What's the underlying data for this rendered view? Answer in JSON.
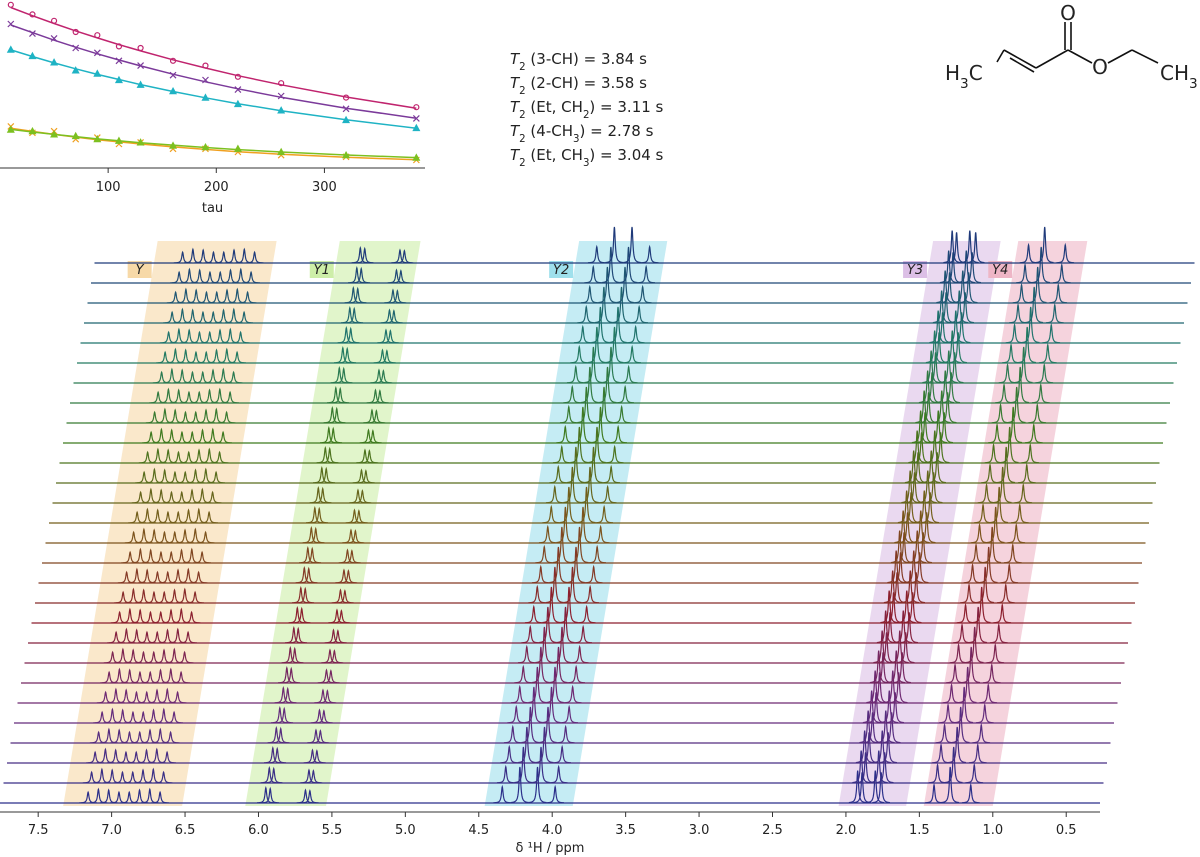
{
  "annotations": [
    [
      "T",
      "2",
      " (3-CH) = 3.84 s"
    ],
    [
      "T",
      "2",
      " (2-CH) = 3.58 s"
    ],
    [
      "T",
      "2",
      " (Et, CH",
      "2",
      ") = 3.11 s"
    ],
    [
      "T",
      "2",
      " (4-CH",
      "3",
      ") = 2.78 s"
    ],
    [
      "T",
      "2",
      " (Et, CH",
      "3",
      ") = 3.04 s"
    ]
  ],
  "molecule": {
    "labels": [
      [
        "H",
        "3",
        "C"
      ],
      [
        "O"
      ],
      [
        "O"
      ],
      [
        "CH",
        "3"
      ]
    ]
  },
  "chart_data": [
    {
      "type": "scatter",
      "xlabel": "tau",
      "xlim": [
        0,
        393
      ],
      "ylim": [
        0,
        1.05
      ],
      "xticks": [
        100,
        200,
        300
      ],
      "x": [
        10,
        30,
        50,
        70,
        90,
        110,
        130,
        160,
        190,
        220,
        260,
        320,
        385
      ],
      "series": [
        {
          "color": "#c0246e",
          "marker": "circle",
          "values": [
            1.02,
            0.96,
            0.92,
            0.85,
            0.83,
            0.76,
            0.75,
            0.67,
            0.64,
            0.57,
            0.53,
            0.44,
            0.38
          ],
          "fit": [
            1.003,
            0.952,
            0.903,
            0.857,
            0.813,
            0.771,
            0.732,
            0.676,
            0.625,
            0.577,
            0.52,
            0.444,
            0.374
          ]
        },
        {
          "color": "#7b3a9a",
          "marker": "cross",
          "values": [
            0.9,
            0.84,
            0.81,
            0.75,
            0.72,
            0.67,
            0.64,
            0.58,
            0.55,
            0.49,
            0.45,
            0.37,
            0.31
          ],
          "fit": [
            0.894,
            0.846,
            0.799,
            0.755,
            0.714,
            0.675,
            0.638,
            0.586,
            0.539,
            0.495,
            0.442,
            0.374,
            0.311
          ]
        },
        {
          "color": "#1fb3c4",
          "marker": "triangle",
          "values": [
            0.74,
            0.7,
            0.66,
            0.61,
            0.59,
            0.55,
            0.52,
            0.48,
            0.44,
            0.4,
            0.36,
            0.3,
            0.25
          ],
          "fit": [
            0.738,
            0.697,
            0.657,
            0.62,
            0.585,
            0.553,
            0.521,
            0.478,
            0.439,
            0.402,
            0.358,
            0.301,
            0.249
          ]
        },
        {
          "color": "#f0a020",
          "marker": "cross",
          "values": [
            0.26,
            0.22,
            0.23,
            0.18,
            0.19,
            0.15,
            0.16,
            0.12,
            0.12,
            0.1,
            0.08,
            0.07,
            0.05
          ],
          "fit": [
            0.249,
            0.229,
            0.21,
            0.193,
            0.177,
            0.163,
            0.15,
            0.132,
            0.116,
            0.102,
            0.086,
            0.067,
            0.051
          ]
        },
        {
          "color": "#7cc020",
          "marker": "triangle",
          "values": [
            0.24,
            0.23,
            0.21,
            0.2,
            0.18,
            0.17,
            0.16,
            0.14,
            0.13,
            0.12,
            0.1,
            0.08,
            0.065
          ],
          "fit": [
            0.241,
            0.225,
            0.21,
            0.196,
            0.182,
            0.17,
            0.158,
            0.143,
            0.128,
            0.115,
            0.1,
            0.081,
            0.065
          ]
        }
      ]
    },
    {
      "type": "stacked-spectrum",
      "xlabel": "δ ¹H / ppm",
      "xlim": [
        7.76,
        0.27
      ],
      "xticks": [
        7.5,
        {
          "value": 7,
          "label": "7.0"
        },
        6.5,
        {
          "value": 6,
          "label": "6.0"
        },
        5.5,
        {
          "value": 5,
          "label": "5.0"
        },
        4.5,
        {
          "value": 4,
          "label": "4.0"
        },
        3.5,
        {
          "value": 3,
          "label": "3.0"
        },
        2.5,
        {
          "value": 2,
          "label": "2.0"
        },
        1.5,
        {
          "value": 1,
          "label": "1.0"
        },
        0.5
      ],
      "traces": 28,
      "colors": [
        "#2b2f8a",
        "#6a2a7a",
        "#8c1f2e",
        "#7a5a1a",
        "#3f7a1f",
        "#1f7a6a",
        "#1f3a7a"
      ],
      "regions": [
        {
          "label": "Y",
          "range": [
            7.33,
            6.52
          ],
          "color": "#f7d9a8"
        },
        {
          "label": "Y1",
          "range": [
            6.09,
            5.54
          ],
          "color": "#cdeea8"
        },
        {
          "label": "Y2",
          "range": [
            4.46,
            3.86
          ],
          "color": "#9fe0ec"
        },
        {
          "label": "Y3",
          "range": [
            2.05,
            1.59
          ],
          "color": "#dcbfe6"
        },
        {
          "label": "Y4",
          "range": [
            1.47,
            1.0
          ],
          "color": "#eeb6c6"
        }
      ],
      "peaks": [
        {
          "ppm": 7.16,
          "height": 0.3
        },
        {
          "ppm": 7.09,
          "height": 0.38
        },
        {
          "ppm": 7.02,
          "height": 0.36
        },
        {
          "ppm": 6.95,
          "height": 0.3
        },
        {
          "ppm": 6.88,
          "height": 0.3
        },
        {
          "ppm": 6.81,
          "height": 0.36
        },
        {
          "ppm": 6.74,
          "height": 0.38
        },
        {
          "ppm": 6.67,
          "height": 0.3
        },
        {
          "ppm": 5.95,
          "height": 0.42
        },
        {
          "ppm": 5.92,
          "height": 0.4
        },
        {
          "ppm": 5.68,
          "height": 0.36
        },
        {
          "ppm": 5.65,
          "height": 0.34
        },
        {
          "ppm": 4.34,
          "height": 0.45
        },
        {
          "ppm": 4.22,
          "height": 1.0
        },
        {
          "ppm": 4.1,
          "height": 1.0
        },
        {
          "ppm": 3.98,
          "height": 0.45
        },
        {
          "ppm": 1.92,
          "height": 0.9
        },
        {
          "ppm": 1.89,
          "height": 0.85
        },
        {
          "ppm": 1.8,
          "height": 0.9
        },
        {
          "ppm": 1.76,
          "height": 0.85
        },
        {
          "ppm": 1.4,
          "height": 0.5
        },
        {
          "ppm": 1.29,
          "height": 1.0
        },
        {
          "ppm": 1.15,
          "height": 0.5
        }
      ]
    }
  ]
}
